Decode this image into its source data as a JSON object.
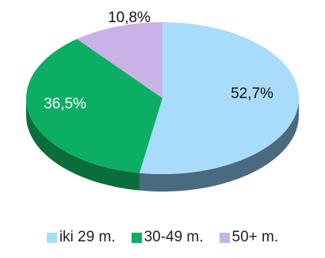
{
  "chart_data": {
    "type": "pie",
    "style": "3d",
    "title": "",
    "legend_position": "bottom",
    "slices": [
      {
        "name": "iki 29 m.",
        "value": 52.7,
        "label": "52,7%",
        "color": "#a9dcfa",
        "side_color": "#4a6a7f",
        "label_color": "#111111"
      },
      {
        "name": "30-49 m.",
        "value": 36.5,
        "label": "36,5%",
        "color": "#0cae64",
        "side_color": "#0a6e3c",
        "label_color": "#ffffff"
      },
      {
        "name": "50+ m.",
        "value": 10.8,
        "label": "10,8%",
        "color": "#c8b2e6",
        "side_color": "#8c76aa",
        "label_color": "#111111"
      }
    ]
  }
}
